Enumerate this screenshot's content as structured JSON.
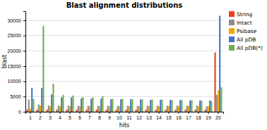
{
  "chart_data": {
    "type": "bar",
    "title": "Blast alignment distributions",
    "xlabel": "hits",
    "ylabel": "blast",
    "categories": [
      1,
      2,
      3,
      4,
      5,
      6,
      7,
      8,
      9,
      10,
      11,
      12,
      13,
      14,
      15,
      16,
      17,
      18,
      19,
      20
    ],
    "series": [
      {
        "name": "String",
        "color": "#E8401C",
        "values": [
          700,
          700,
          700,
          700,
          700,
          700,
          700,
          700,
          700,
          700,
          700,
          700,
          700,
          700,
          700,
          700,
          700,
          700,
          700,
          19500
        ]
      },
      {
        "name": "Intact",
        "color": "#8C8C8C",
        "values": [
          4000,
          2400,
          2100,
          2000,
          2000,
          2000,
          2000,
          2000,
          2000,
          2000,
          2000,
          2000,
          2000,
          2000,
          2000,
          2000,
          2000,
          2000,
          1800,
          5500
        ]
      },
      {
        "name": "Psibase",
        "color": "#F0A800",
        "values": [
          1000,
          2000,
          1800,
          1800,
          1800,
          1800,
          1800,
          1800,
          1800,
          1800,
          1800,
          1800,
          1800,
          1800,
          1800,
          1800,
          1800,
          1800,
          1800,
          7000
        ]
      },
      {
        "name": "All pDB",
        "color": "#4472C4",
        "values": [
          7800,
          7800,
          5700,
          4700,
          4700,
          4400,
          4300,
          4300,
          4100,
          4100,
          4100,
          4100,
          3900,
          3900,
          3900,
          3800,
          3700,
          3700,
          3700,
          31500
        ]
      },
      {
        "name": "All pDB(*)",
        "color": "#70AD47",
        "values": [
          4200,
          28200,
          9200,
          5500,
          5300,
          4800,
          4700,
          5100,
          4200,
          4200,
          4100,
          4000,
          4000,
          4000,
          3900,
          3900,
          3800,
          3600,
          3500,
          8000
        ]
      }
    ],
    "ylim": [
      0,
      33000
    ],
    "yticks": [
      0,
      5000,
      10000,
      15000,
      20000,
      25000,
      30000
    ],
    "grid": true,
    "legend": "right"
  }
}
